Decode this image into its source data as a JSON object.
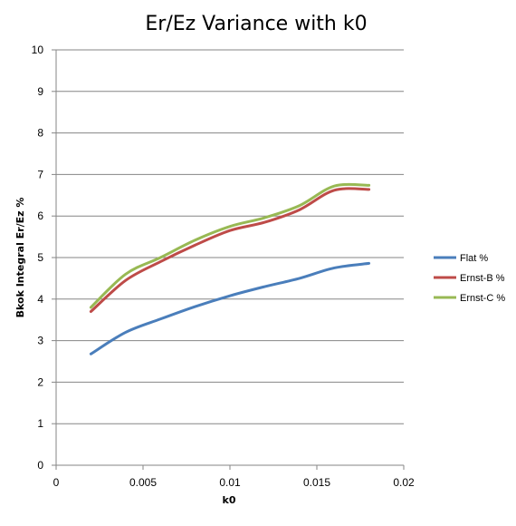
{
  "chart_data": {
    "type": "line",
    "title": "Er/Ez Variance with k0",
    "xlabel": "k0",
    "ylabel": "Bkok Integral Er/Ez %",
    "xlim": [
      0,
      0.02
    ],
    "ylim": [
      0,
      10
    ],
    "x_ticks": [
      "0",
      "0.005",
      "0.01",
      "0.015",
      "0.02"
    ],
    "y_ticks": [
      "0",
      "1",
      "2",
      "3",
      "4",
      "5",
      "6",
      "7",
      "8",
      "9",
      "10"
    ],
    "grid": "horizontal",
    "legend_position": "right",
    "x": [
      0.002,
      0.004,
      0.006,
      0.008,
      0.01,
      0.012,
      0.014,
      0.016,
      0.018
    ],
    "series": [
      {
        "name": "Flat %",
        "color": "#4a7ebb",
        "values": [
          2.68,
          3.2,
          3.52,
          3.82,
          4.08,
          4.3,
          4.5,
          4.75,
          4.86
        ]
      },
      {
        "name": "Ernst-B %",
        "color": "#be4b48",
        "values": [
          3.7,
          4.45,
          4.9,
          5.3,
          5.65,
          5.85,
          6.15,
          6.62,
          6.64
        ]
      },
      {
        "name": "Ernst-C %",
        "color": "#98b954",
        "values": [
          3.8,
          4.6,
          5.0,
          5.42,
          5.75,
          5.96,
          6.25,
          6.72,
          6.74
        ]
      }
    ]
  }
}
